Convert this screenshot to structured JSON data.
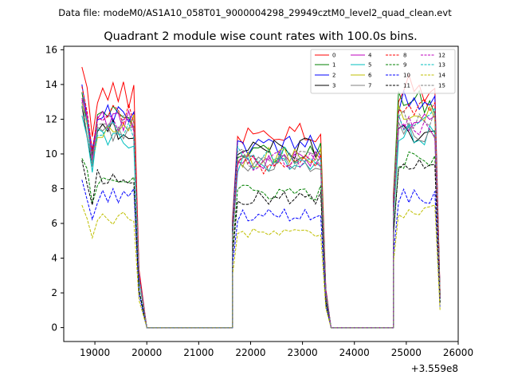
{
  "chart_data": {
    "type": "line",
    "suptitle": "Data file: modeM0/AS1A10_058T01_9000004298_29949cztM0_level2_quad_clean.evt",
    "title": "Quadrant 2 module wise count rates with 100.0s bins.",
    "xlabel": "",
    "ylabel": "",
    "x_offset_label": "+3.559e8",
    "xlim": [
      18400,
      26000
    ],
    "ylim": [
      -0.8,
      16.2
    ],
    "xticks": [
      19000,
      20000,
      21000,
      22000,
      23000,
      24000,
      25000,
      26000
    ],
    "xtick_labels": [
      "19000",
      "20000",
      "21000",
      "22000",
      "23000",
      "24000",
      "25000",
      "26000"
    ],
    "yticks": [
      0,
      2,
      4,
      6,
      8,
      10,
      12,
      14,
      16
    ],
    "ytick_labels": [
      "0",
      "2",
      "4",
      "6",
      "8",
      "10",
      "12",
      "14",
      "16"
    ],
    "legend_position": "upper right",
    "gap_rate": 0.0,
    "segments": [
      {
        "x_start": 18750,
        "n_bins": 12,
        "edge_fraction": 0.25
      },
      {
        "x_start": 21650,
        "n_bins": 19,
        "edge_fraction": 0.2
      },
      {
        "x_start": 24750,
        "n_bins": 10,
        "edge_fraction": 0.15
      }
    ],
    "gaps": [
      {
        "x_start": 20000,
        "x_end": 21650
      },
      {
        "x_start": 23550,
        "x_end": 24750
      }
    ],
    "bin_width": 100,
    "series": [
      {
        "name": "0",
        "color": "#ff0000",
        "style": "solid",
        "levels": [
          13.4,
          11.2,
          13.8
        ]
      },
      {
        "name": "1",
        "color": "#008000",
        "style": "solid",
        "levels": [
          12.1,
          10.1,
          13.0
        ]
      },
      {
        "name": "2",
        "color": "#0000ff",
        "style": "solid",
        "levels": [
          12.5,
          10.5,
          12.9
        ]
      },
      {
        "name": "3",
        "color": "#000000",
        "style": "solid",
        "levels": [
          11.4,
          10.3,
          11.3
        ]
      },
      {
        "name": "4",
        "color": "#bf00bf",
        "style": "solid",
        "levels": [
          11.8,
          9.6,
          12.0
        ]
      },
      {
        "name": "5",
        "color": "#00bfbf",
        "style": "solid",
        "levels": [
          10.9,
          9.3,
          11.0
        ]
      },
      {
        "name": "6",
        "color": "#bfbf00",
        "style": "solid",
        "levels": [
          11.6,
          9.8,
          12.2
        ]
      },
      {
        "name": "7",
        "color": "#808080",
        "style": "solid",
        "levels": [
          11.3,
          9.5,
          11.2
        ]
      },
      {
        "name": "8",
        "color": "#ff0000",
        "style": "dashed",
        "levels": [
          12.4,
          9.4,
          12.5
        ]
      },
      {
        "name": "9",
        "color": "#008000",
        "style": "dashed",
        "levels": [
          8.7,
          7.8,
          9.6
        ]
      },
      {
        "name": "10",
        "color": "#0000ff",
        "style": "dashed",
        "levels": [
          7.6,
          6.5,
          7.6
        ]
      },
      {
        "name": "11",
        "color": "#000000",
        "style": "dashed",
        "levels": [
          8.6,
          7.4,
          9.6
        ]
      },
      {
        "name": "12",
        "color": "#bf00bf",
        "style": "dashed",
        "levels": [
          11.7,
          9.6,
          11.6
        ]
      },
      {
        "name": "13",
        "color": "#00bfbf",
        "style": "dashed",
        "levels": [
          11.4,
          9.9,
          12.1
        ]
      },
      {
        "name": "14",
        "color": "#bfbf00",
        "style": "dashed",
        "levels": [
          6.3,
          5.4,
          6.7
        ]
      },
      {
        "name": "15",
        "color": "#808080",
        "style": "dashed",
        "levels": [
          11.6,
          9.7,
          11.9
        ]
      }
    ]
  }
}
